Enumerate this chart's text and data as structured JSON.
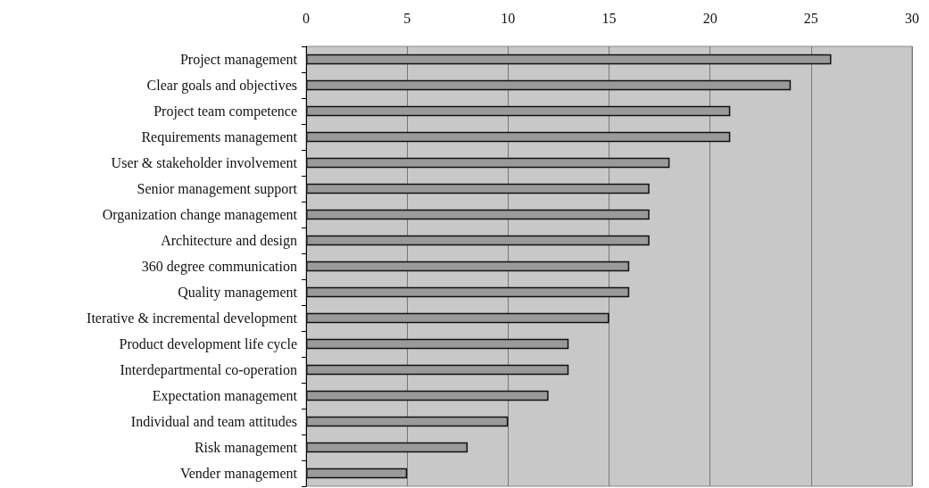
{
  "chart_data": {
    "type": "bar",
    "orientation": "horizontal",
    "categories": [
      "Project management",
      "Clear goals and objectives",
      "Project team competence",
      "Requirements management",
      "User & stakeholder involvement",
      "Senior management support",
      "Organization change management",
      "Architecture and design",
      "360 degree communication",
      "Quality management",
      "Iterative & incremental development",
      "Product development life cycle",
      "Interdepartmental co-operation",
      "Expectation management",
      "Individual and team attitudes",
      "Risk management",
      "Vender management"
    ],
    "values": [
      26,
      24,
      21,
      21,
      18,
      17,
      17,
      17,
      16,
      16,
      15,
      13,
      13,
      12,
      10,
      8,
      5
    ],
    "color": "#9a9a9a",
    "xlim": [
      0,
      30
    ],
    "xticks": [
      0,
      5,
      10,
      15,
      20,
      25,
      30
    ],
    "grid": "x"
  }
}
